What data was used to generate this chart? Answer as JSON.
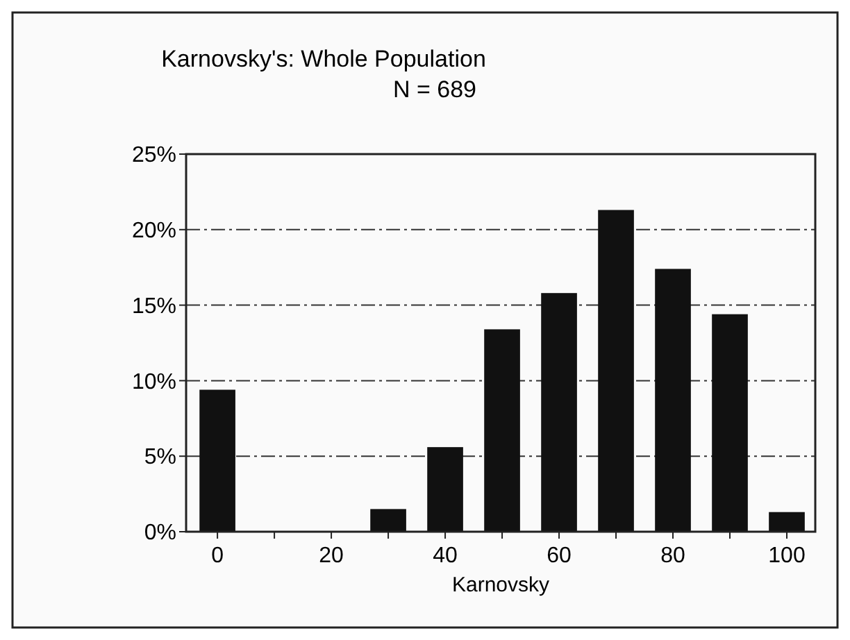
{
  "chart_data": {
    "type": "bar",
    "title": "Karnovsky's: Whole Population",
    "subtitle": "N = 689",
    "xlabel": "Karnovsky",
    "x": [
      0,
      10,
      20,
      30,
      40,
      50,
      60,
      70,
      80,
      90,
      100
    ],
    "values": [
      9.4,
      0,
      0,
      1.5,
      5.6,
      13.4,
      15.8,
      21.3,
      17.4,
      14.4,
      1.3
    ],
    "color": "#111111",
    "xlim": [
      -5.5,
      105
    ],
    "xticks": [
      0,
      {
        "value": 10,
        "label": null
      },
      20,
      {
        "value": 30,
        "label": null
      },
      40,
      {
        "value": 50,
        "label": null
      },
      60,
      {
        "value": 70,
        "label": null
      },
      80,
      {
        "value": 90,
        "label": null
      },
      100
    ],
    "ylim": [
      0,
      25
    ],
    "yticks": [
      {
        "value": 0,
        "label": "0%"
      },
      {
        "value": 5,
        "label": "5%"
      },
      {
        "value": 10,
        "label": "10%"
      },
      {
        "value": 15,
        "label": "15%"
      },
      {
        "value": 20,
        "label": "20%"
      },
      {
        "value": 25,
        "label": "25%"
      }
    ],
    "grid": "y"
  }
}
